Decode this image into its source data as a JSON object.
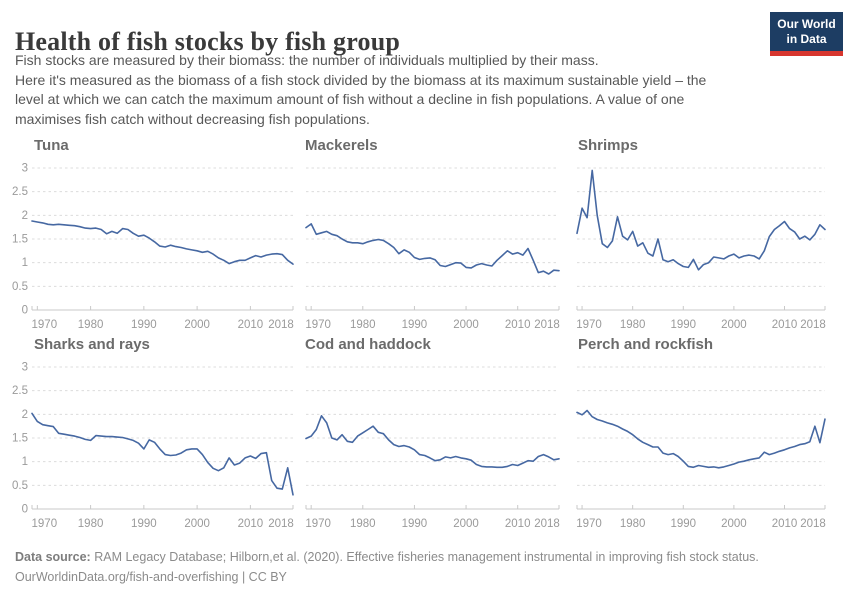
{
  "header": {
    "title": "Health of fish stocks by fish group",
    "subtitle_lines": [
      "Fish stocks are measured by their biomass: the number of individuals multiplied by their mass.",
      "Here it's measured as the biomass of a fish stock divided by the biomass at its maximum sustainable yield – the",
      "level at which we can catch the maximum amount of fish without a decline in fish populations. A value of one",
      "maximises fish catch without decreasing fish populations."
    ],
    "logo": {
      "line1": "Our World",
      "line2": "in Data"
    }
  },
  "style": {
    "line_color": "#4668a2",
    "grid_color": "#dcdcdc",
    "axis_color": "#c9c9c9",
    "tick_label_color": "#9a9a9a",
    "facet_title_color": "#6b6b6b",
    "logo_bg": "#1d3d63",
    "logo_stripe": "#d7362e"
  },
  "chart_data": {
    "type": "line",
    "title": "Health of fish stocks by fish group",
    "x_start": 1969,
    "x_end": 2018,
    "x_step": 1,
    "xlabel": "",
    "ylabel": "",
    "ylim": [
      0,
      3
    ],
    "yticks": [
      0,
      0.5,
      1,
      1.5,
      2,
      2.5,
      3
    ],
    "xticks": [
      1970,
      1980,
      1990,
      2000,
      2010,
      2018
    ],
    "grid": "horizontal-dashed",
    "legend": "none",
    "series": [
      {
        "name": "Tuna",
        "values": [
          1.88,
          1.86,
          1.84,
          1.81,
          1.8,
          1.81,
          1.8,
          1.79,
          1.78,
          1.76,
          1.73,
          1.72,
          1.73,
          1.7,
          1.61,
          1.66,
          1.62,
          1.72,
          1.7,
          1.62,
          1.56,
          1.58,
          1.52,
          1.44,
          1.35,
          1.33,
          1.37,
          1.34,
          1.32,
          1.29,
          1.27,
          1.25,
          1.22,
          1.24,
          1.18,
          1.1,
          1.05,
          0.98,
          1.02,
          1.05,
          1.05,
          1.1,
          1.15,
          1.12,
          1.16,
          1.18,
          1.19,
          1.17,
          1.05,
          0.97
        ]
      },
      {
        "name": "Mackerels",
        "values": [
          1.74,
          1.82,
          1.6,
          1.63,
          1.66,
          1.6,
          1.57,
          1.5,
          1.44,
          1.42,
          1.42,
          1.4,
          1.44,
          1.47,
          1.49,
          1.47,
          1.4,
          1.32,
          1.19,
          1.27,
          1.22,
          1.11,
          1.07,
          1.09,
          1.1,
          1.06,
          0.94,
          0.92,
          0.96,
          1.0,
          0.99,
          0.9,
          0.89,
          0.95,
          0.98,
          0.95,
          0.93,
          1.05,
          1.15,
          1.25,
          1.18,
          1.21,
          1.16,
          1.3,
          1.05,
          0.79,
          0.82,
          0.76,
          0.84,
          0.83
        ]
      },
      {
        "name": "Shrimps",
        "values": [
          1.62,
          2.15,
          1.95,
          2.95,
          2.0,
          1.4,
          1.32,
          1.46,
          1.97,
          1.56,
          1.48,
          1.66,
          1.35,
          1.42,
          1.2,
          1.14,
          1.5,
          1.06,
          1.02,
          1.06,
          0.98,
          0.92,
          0.9,
          1.07,
          0.85,
          0.96,
          1.0,
          1.12,
          1.1,
          1.08,
          1.14,
          1.18,
          1.1,
          1.14,
          1.16,
          1.14,
          1.08,
          1.25,
          1.55,
          1.7,
          1.78,
          1.87,
          1.72,
          1.65,
          1.5,
          1.56,
          1.48,
          1.6,
          1.8,
          1.7
        ]
      },
      {
        "name": "Sharks and rays",
        "values": [
          2.02,
          1.85,
          1.78,
          1.76,
          1.74,
          1.6,
          1.58,
          1.56,
          1.54,
          1.51,
          1.47,
          1.45,
          1.55,
          1.54,
          1.53,
          1.53,
          1.52,
          1.51,
          1.48,
          1.45,
          1.39,
          1.27,
          1.46,
          1.41,
          1.27,
          1.15,
          1.13,
          1.14,
          1.18,
          1.25,
          1.27,
          1.27,
          1.15,
          0.98,
          0.86,
          0.81,
          0.87,
          1.08,
          0.93,
          0.97,
          1.08,
          1.12,
          1.07,
          1.17,
          1.19,
          0.6,
          0.44,
          0.42,
          0.87,
          0.3
        ]
      },
      {
        "name": "Cod and haddock",
        "values": [
          1.49,
          1.54,
          1.68,
          1.97,
          1.82,
          1.5,
          1.46,
          1.57,
          1.43,
          1.41,
          1.54,
          1.61,
          1.68,
          1.75,
          1.62,
          1.59,
          1.46,
          1.36,
          1.32,
          1.34,
          1.31,
          1.25,
          1.15,
          1.13,
          1.08,
          1.02,
          1.04,
          1.1,
          1.08,
          1.11,
          1.08,
          1.06,
          1.03,
          0.94,
          0.9,
          0.89,
          0.89,
          0.88,
          0.88,
          0.9,
          0.94,
          0.92,
          0.97,
          1.02,
          1.01,
          1.11,
          1.15,
          1.1,
          1.04,
          1.06
        ]
      },
      {
        "name": "Perch and rockfish",
        "values": [
          2.04,
          1.99,
          2.08,
          1.95,
          1.89,
          1.86,
          1.82,
          1.79,
          1.75,
          1.69,
          1.64,
          1.57,
          1.48,
          1.41,
          1.36,
          1.31,
          1.31,
          1.18,
          1.15,
          1.17,
          1.11,
          1.01,
          0.9,
          0.88,
          0.92,
          0.9,
          0.88,
          0.89,
          0.87,
          0.89,
          0.92,
          0.95,
          0.99,
          1.01,
          1.04,
          1.06,
          1.08,
          1.2,
          1.15,
          1.18,
          1.22,
          1.25,
          1.29,
          1.32,
          1.36,
          1.38,
          1.42,
          1.75,
          1.4,
          1.9
        ]
      }
    ]
  },
  "footer": {
    "datasource_label": "Data source:",
    "datasource_text": " RAM Legacy Database; Hilborn,et al. (2020). Effective fisheries management instrumental in improving fish stock status.",
    "link_line": "OurWorldinData.org/fish-and-overfishing | CC BY"
  }
}
